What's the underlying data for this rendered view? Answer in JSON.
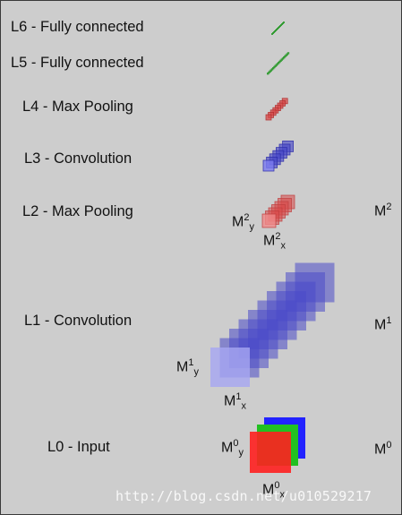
{
  "layers": [
    {
      "id": "L6",
      "label": "L6 - Fully connected"
    },
    {
      "id": "L5",
      "label": "L5 - Fully connected"
    },
    {
      "id": "L4",
      "label": "L4 - Max Pooling"
    },
    {
      "id": "L3",
      "label": "L3 - Convolution"
    },
    {
      "id": "L2",
      "label": "L2 - Max Pooling"
    },
    {
      "id": "L1",
      "label": "L1 - Convolution"
    },
    {
      "id": "L0",
      "label": "L0 - Input"
    }
  ],
  "maps": {
    "m2": {
      "base": "M",
      "sup": "2"
    },
    "m2y": {
      "base": "M",
      "sup": "2",
      "sub": "y"
    },
    "m2x": {
      "base": "M",
      "sup": "2",
      "sub": "x"
    },
    "m1": {
      "base": "M",
      "sup": "1"
    },
    "m1y": {
      "base": "M",
      "sup": "1",
      "sub": "y"
    },
    "m1x": {
      "base": "M",
      "sup": "1",
      "sub": "x"
    },
    "m0": {
      "base": "M",
      "sup": "0"
    },
    "m0y": {
      "base": "M",
      "sup": "0",
      "sub": "y"
    },
    "m0x": {
      "base": "M",
      "sup": "0",
      "sub": "x"
    }
  },
  "watermark": "http://blog.csdn.net/u010529217",
  "colors": {
    "background": "#cdcdcd",
    "convolution": "#4a4ac8",
    "pooling": "#d84a4a",
    "fully_connected": "#2f9a2f",
    "input_red": "#ff2020",
    "input_green": "#22c022",
    "input_blue": "#2222ff"
  }
}
